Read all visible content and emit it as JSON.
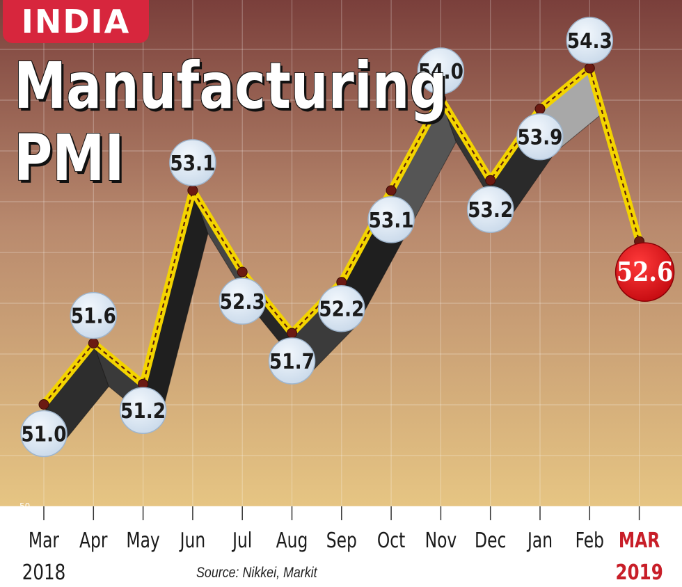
{
  "badge": "INDIA",
  "title_line1": "Manufacturing",
  "title_line2": "PMI",
  "source": "Source: Nikkei, Markit",
  "colors": {
    "plot_bg": "#e0bd7c",
    "badge": "#d7263d",
    "line": "#f3d400",
    "dot": "#6b1a12",
    "bubble": "#d6e4f2",
    "highlight": "#e0141a",
    "highlight_label": "#c81e28"
  },
  "chart_data": {
    "type": "line",
    "title": "Manufacturing PMI",
    "categories": [
      "Mar",
      "Apr",
      "May",
      "Jun",
      "Jul",
      "Aug",
      "Sep",
      "Oct",
      "Nov",
      "Dec",
      "Jan",
      "Feb",
      "MAR"
    ],
    "values": [
      51.0,
      51.6,
      51.2,
      53.1,
      52.3,
      51.7,
      52.2,
      53.1,
      54.0,
      53.2,
      53.9,
      54.3,
      52.6
    ],
    "value_labels": [
      "51.0",
      "51.6",
      "51.2",
      "53.1",
      "52.3",
      "51.7",
      "52.2",
      "53.1",
      "54.0",
      "53.2",
      "53.9",
      "54.3",
      "52.6"
    ],
    "year_labels": [
      "2018",
      "2019"
    ],
    "y_tick": "50",
    "ylim": [
      50,
      54.8
    ],
    "highlight_index": 12,
    "grid": true
  }
}
